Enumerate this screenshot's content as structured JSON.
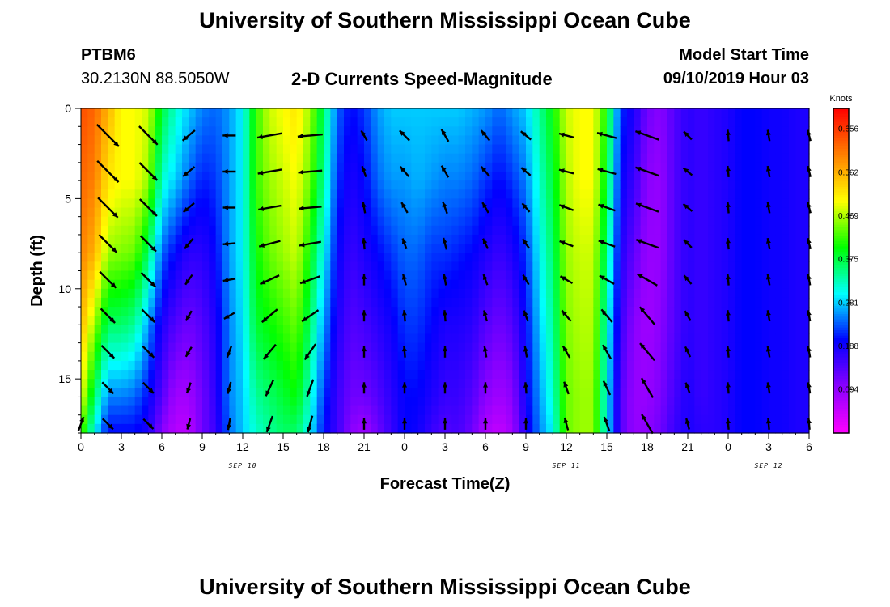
{
  "page": {
    "title_top": "University of Southern Mississippi Ocean Cube",
    "title_bottom": "University of Southern Mississippi Ocean Cube",
    "station_id": "PTBM6",
    "station_coords": "30.2130N 88.5050W",
    "plot_title": "2-D Currents Speed-Magnitude",
    "model_label": "Model Start Time",
    "model_time": "09/10/2019 Hour 03"
  },
  "chart_data": {
    "type": "heatmap",
    "title": "2-D Currents Speed-Magnitude",
    "xlabel": "Forecast Time(Z)",
    "ylabel": "Depth (ft)",
    "x_tick_labels": [
      "0",
      "3",
      "6",
      "9",
      "12",
      "15",
      "18",
      "21",
      "0",
      "3",
      "6",
      "9",
      "12",
      "15",
      "18",
      "21",
      "0",
      "3",
      "6"
    ],
    "x_range_hours": [
      0,
      54
    ],
    "date_labels": [
      {
        "text": "SEP 10",
        "hour": 12
      },
      {
        "text": "SEP 11",
        "hour": 36
      },
      {
        "text": "SEP 12",
        "hour": 51
      }
    ],
    "y_ticks": [
      0,
      5,
      10,
      15
    ],
    "ylim": [
      0,
      18
    ],
    "y_inverted": true,
    "colorbar": {
      "unit": "Knots",
      "ticks": [
        0.656,
        0.562,
        0.469,
        0.375,
        0.281,
        0.188,
        0.094
      ],
      "range": [
        0.0,
        0.7
      ]
    },
    "colormap": [
      "#ff00ff",
      "#8a00ff",
      "#0000ff",
      "#00ffff",
      "#00ff00",
      "#ffff00",
      "#ff8000",
      "#ff0000"
    ],
    "speed_profile_knots": [
      [
        0,
        [
          0.64,
          0.62,
          0.6,
          0.56,
          0.5,
          0.44
        ]
      ],
      [
        1,
        [
          0.62,
          0.6,
          0.56,
          0.46,
          0.36,
          0.3
        ]
      ],
      [
        2,
        [
          0.56,
          0.52,
          0.46,
          0.36,
          0.25,
          0.2
        ]
      ],
      [
        3,
        [
          0.5,
          0.5,
          0.45,
          0.36,
          0.25,
          0.2
        ]
      ],
      [
        4,
        [
          0.5,
          0.5,
          0.44,
          0.34,
          0.24,
          0.2
        ]
      ],
      [
        5,
        [
          0.48,
          0.46,
          0.36,
          0.26,
          0.2,
          0.18
        ]
      ],
      [
        6,
        [
          0.38,
          0.32,
          0.24,
          0.18,
          0.14,
          0.1
        ]
      ],
      [
        7,
        [
          0.32,
          0.28,
          0.2,
          0.14,
          0.08,
          0.06
        ]
      ],
      [
        8,
        [
          0.28,
          0.24,
          0.17,
          0.12,
          0.08,
          0.06
        ]
      ],
      [
        9,
        [
          0.25,
          0.21,
          0.17,
          0.14,
          0.12,
          0.12
        ]
      ],
      [
        10,
        [
          0.24,
          0.22,
          0.2,
          0.18,
          0.17,
          0.16
        ]
      ],
      [
        11,
        [
          0.26,
          0.26,
          0.26,
          0.25,
          0.25,
          0.24
        ]
      ],
      [
        12,
        [
          0.3,
          0.3,
          0.3,
          0.29,
          0.28,
          0.28
        ]
      ],
      [
        13,
        [
          0.42,
          0.42,
          0.4,
          0.38,
          0.34,
          0.32
        ]
      ],
      [
        14,
        [
          0.48,
          0.46,
          0.44,
          0.4,
          0.36,
          0.34
        ]
      ],
      [
        15,
        [
          0.5,
          0.48,
          0.46,
          0.42,
          0.38,
          0.36
        ]
      ],
      [
        16,
        [
          0.52,
          0.5,
          0.48,
          0.44,
          0.4,
          0.36
        ]
      ],
      [
        17,
        [
          0.46,
          0.44,
          0.4,
          0.36,
          0.32,
          0.3
        ]
      ],
      [
        18,
        [
          0.36,
          0.34,
          0.3,
          0.26,
          0.22,
          0.2
        ]
      ],
      [
        19,
        [
          0.24,
          0.22,
          0.2,
          0.18,
          0.16,
          0.16
        ]
      ],
      [
        20,
        [
          0.2,
          0.18,
          0.16,
          0.14,
          0.12,
          0.1
        ]
      ],
      [
        21,
        [
          0.22,
          0.2,
          0.18,
          0.15,
          0.12,
          0.08
        ]
      ],
      [
        22,
        [
          0.26,
          0.24,
          0.2,
          0.17,
          0.14,
          0.12
        ]
      ],
      [
        23,
        [
          0.28,
          0.26,
          0.22,
          0.19,
          0.17,
          0.16
        ]
      ],
      [
        24,
        [
          0.28,
          0.26,
          0.24,
          0.22,
          0.2,
          0.2
        ]
      ],
      [
        25,
        [
          0.28,
          0.27,
          0.24,
          0.22,
          0.2,
          0.19
        ]
      ],
      [
        26,
        [
          0.28,
          0.26,
          0.22,
          0.2,
          0.18,
          0.16
        ]
      ],
      [
        27,
        [
          0.28,
          0.25,
          0.22,
          0.18,
          0.16,
          0.14
        ]
      ],
      [
        28,
        [
          0.28,
          0.25,
          0.21,
          0.18,
          0.16,
          0.15
        ]
      ],
      [
        29,
        [
          0.27,
          0.24,
          0.2,
          0.17,
          0.14,
          0.12
        ]
      ],
      [
        30,
        [
          0.26,
          0.22,
          0.18,
          0.14,
          0.1,
          0.07
        ]
      ],
      [
        31,
        [
          0.24,
          0.2,
          0.16,
          0.12,
          0.08,
          0.05
        ]
      ],
      [
        32,
        [
          0.26,
          0.22,
          0.18,
          0.14,
          0.1,
          0.08
        ]
      ],
      [
        33,
        [
          0.28,
          0.25,
          0.22,
          0.2,
          0.19,
          0.18
        ]
      ],
      [
        34,
        [
          0.34,
          0.32,
          0.3,
          0.28,
          0.26,
          0.25
        ]
      ],
      [
        35,
        [
          0.4,
          0.38,
          0.36,
          0.34,
          0.32,
          0.3
        ]
      ],
      [
        36,
        [
          0.48,
          0.47,
          0.46,
          0.45,
          0.44,
          0.44
        ]
      ],
      [
        37,
        [
          0.5,
          0.5,
          0.48,
          0.47,
          0.46,
          0.46
        ]
      ],
      [
        38,
        [
          0.5,
          0.5,
          0.48,
          0.47,
          0.46,
          0.46
        ]
      ],
      [
        39,
        [
          0.4,
          0.38,
          0.35,
          0.32,
          0.3,
          0.3
        ]
      ],
      [
        40,
        [
          0.22,
          0.2,
          0.18,
          0.16,
          0.14,
          0.14
        ]
      ],
      [
        41,
        [
          0.18,
          0.16,
          0.13,
          0.1,
          0.09,
          0.09
        ]
      ],
      [
        42,
        [
          0.12,
          0.1,
          0.09,
          0.08,
          0.09,
          0.1
        ]
      ],
      [
        43,
        [
          0.1,
          0.09,
          0.09,
          0.1,
          0.11,
          0.12
        ]
      ],
      [
        44,
        [
          0.14,
          0.14,
          0.14,
          0.14,
          0.15,
          0.16
        ]
      ],
      [
        45,
        [
          0.17,
          0.17,
          0.17,
          0.17,
          0.18,
          0.18
        ]
      ],
      [
        46,
        [
          0.16,
          0.16,
          0.16,
          0.16,
          0.16,
          0.17
        ]
      ],
      [
        47,
        [
          0.17,
          0.17,
          0.17,
          0.17,
          0.17,
          0.17
        ]
      ],
      [
        48,
        [
          0.18,
          0.18,
          0.18,
          0.18,
          0.18,
          0.18
        ]
      ],
      [
        49,
        [
          0.2,
          0.2,
          0.2,
          0.2,
          0.2,
          0.2
        ]
      ],
      [
        50,
        [
          0.2,
          0.2,
          0.2,
          0.2,
          0.2,
          0.2
        ]
      ],
      [
        51,
        [
          0.19,
          0.19,
          0.19,
          0.19,
          0.19,
          0.19
        ]
      ],
      [
        52,
        [
          0.19,
          0.19,
          0.19,
          0.19,
          0.19,
          0.19
        ]
      ],
      [
        53,
        [
          0.18,
          0.18,
          0.18,
          0.18,
          0.18,
          0.18
        ]
      ],
      [
        54,
        [
          0.18,
          0.18,
          0.18,
          0.18,
          0.18,
          0.18
        ]
      ]
    ],
    "profile_depths_ft": [
      0,
      4,
      8,
      12,
      16,
      18
    ],
    "vectors": {
      "hours": [
        0,
        2,
        5,
        8,
        11,
        14,
        17,
        21,
        24,
        27,
        30,
        33,
        36,
        39,
        42,
        45,
        48,
        51,
        54
      ],
      "depths_ft": [
        1.5,
        3.5,
        5.5,
        7.5,
        9.5,
        11.5,
        13.5,
        15.5,
        17.5
      ],
      "direction_deg": [
        [
          null,
          135,
          135,
          230,
          270,
          260,
          265,
          330,
          315,
          330,
          320,
          310,
          285,
          285,
          290,
          315,
          355,
          350,
          345
        ],
        [
          null,
          135,
          135,
          230,
          270,
          260,
          265,
          340,
          320,
          330,
          320,
          310,
          285,
          285,
          290,
          310,
          355,
          350,
          345
        ],
        [
          null,
          135,
          135,
          230,
          270,
          260,
          265,
          350,
          330,
          340,
          330,
          320,
          290,
          290,
          290,
          310,
          355,
          350,
          345
        ],
        [
          null,
          135,
          135,
          220,
          265,
          255,
          260,
          355,
          340,
          345,
          335,
          325,
          290,
          290,
          290,
          315,
          355,
          350,
          345
        ],
        [
          null,
          135,
          135,
          215,
          260,
          245,
          250,
          360,
          345,
          350,
          340,
          330,
          300,
          300,
          300,
          320,
          355,
          350,
          350
        ],
        [
          null,
          135,
          135,
          210,
          240,
          230,
          235,
          360,
          355,
          355,
          345,
          340,
          320,
          320,
          320,
          330,
          355,
          350,
          350
        ],
        [
          null,
          135,
          135,
          210,
          200,
          220,
          215,
          360,
          355,
          360,
          350,
          350,
          330,
          330,
          320,
          335,
          355,
          350,
          350
        ],
        [
          null,
          135,
          135,
          200,
          195,
          205,
          200,
          360,
          360,
          360,
          360,
          355,
          340,
          335,
          330,
          340,
          355,
          350,
          350
        ],
        [
          20,
          135,
          135,
          195,
          190,
          200,
          195,
          360,
          360,
          360,
          360,
          360,
          345,
          340,
          330,
          345,
          355,
          355,
          355
        ]
      ],
      "speed_knots": [
        [
          null,
          0.62,
          0.52,
          0.32,
          0.26,
          0.5,
          0.5,
          0.2,
          0.28,
          0.28,
          0.26,
          0.26,
          0.3,
          0.4,
          0.5,
          0.18,
          0.1,
          0.2,
          0.18
        ],
        [
          null,
          0.6,
          0.5,
          0.3,
          0.26,
          0.48,
          0.48,
          0.2,
          0.26,
          0.27,
          0.26,
          0.24,
          0.3,
          0.38,
          0.5,
          0.18,
          0.1,
          0.2,
          0.18
        ],
        [
          null,
          0.56,
          0.48,
          0.28,
          0.25,
          0.46,
          0.46,
          0.18,
          0.24,
          0.25,
          0.24,
          0.22,
          0.3,
          0.36,
          0.48,
          0.17,
          0.1,
          0.2,
          0.18
        ],
        [
          null,
          0.5,
          0.44,
          0.26,
          0.25,
          0.44,
          0.44,
          0.17,
          0.22,
          0.24,
          0.22,
          0.2,
          0.29,
          0.35,
          0.47,
          0.16,
          0.1,
          0.2,
          0.18
        ],
        [
          null,
          0.46,
          0.4,
          0.24,
          0.25,
          0.42,
          0.42,
          0.16,
          0.2,
          0.22,
          0.2,
          0.18,
          0.28,
          0.34,
          0.46,
          0.16,
          0.11,
          0.2,
          0.18
        ],
        [
          null,
          0.4,
          0.36,
          0.22,
          0.24,
          0.4,
          0.4,
          0.15,
          0.19,
          0.21,
          0.18,
          0.16,
          0.28,
          0.33,
          0.46,
          0.16,
          0.12,
          0.2,
          0.18
        ],
        [
          null,
          0.36,
          0.32,
          0.22,
          0.24,
          0.38,
          0.38,
          0.14,
          0.18,
          0.2,
          0.16,
          0.14,
          0.27,
          0.32,
          0.45,
          0.16,
          0.13,
          0.19,
          0.18
        ],
        [
          null,
          0.32,
          0.3,
          0.2,
          0.24,
          0.36,
          0.36,
          0.12,
          0.18,
          0.2,
          0.15,
          0.12,
          0.26,
          0.31,
          0.45,
          0.16,
          0.14,
          0.19,
          0.18
        ],
        [
          0.3,
          0.3,
          0.28,
          0.2,
          0.24,
          0.34,
          0.34,
          0.1,
          0.18,
          0.2,
          0.15,
          0.12,
          0.26,
          0.3,
          0.44,
          0.17,
          0.15,
          0.19,
          0.18
        ]
      ]
    }
  }
}
